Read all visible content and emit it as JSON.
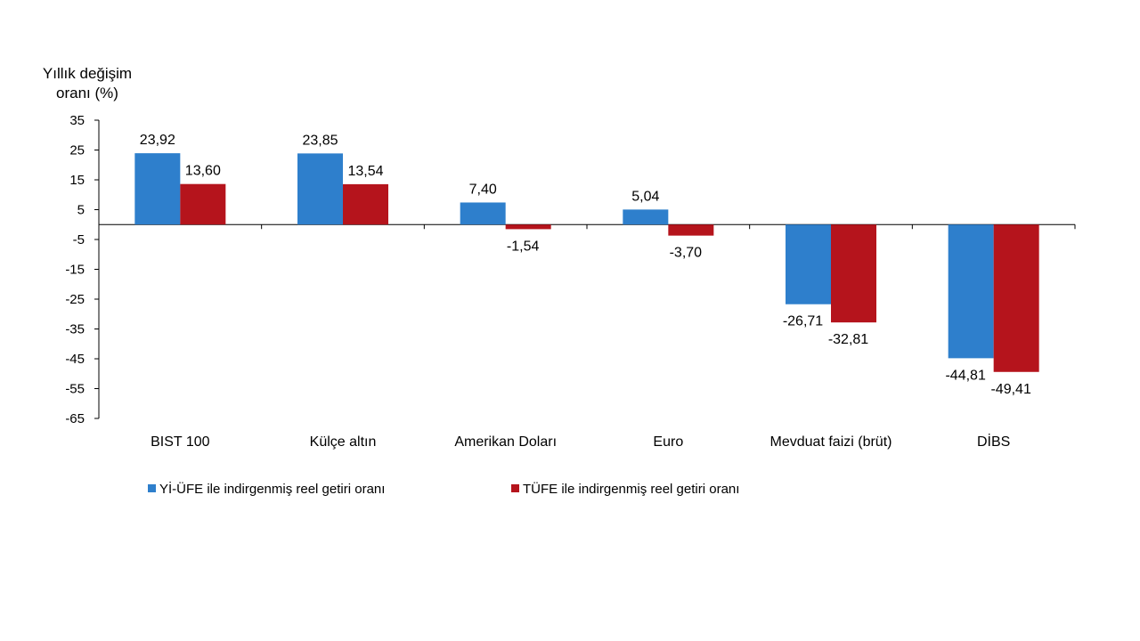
{
  "chart_data": {
    "type": "bar",
    "ylabel": [
      "Yıllık değişim",
      "oranı (%)"
    ],
    "ylim": [
      -65,
      35
    ],
    "yticks": [
      35,
      25,
      15,
      5,
      -5,
      -15,
      -25,
      -35,
      -45,
      -55,
      -65
    ],
    "grid": false,
    "legend_position": "bottom",
    "categories": [
      "BIST 100",
      "Külçe altın",
      "Amerikan Doları",
      "Euro",
      "Mevduat faizi (brüt)",
      "DİBS"
    ],
    "series": [
      {
        "name": "Yİ-ÜFE ile indirgenmiş reel getiri oranı",
        "color": "#2e7fcc",
        "values": [
          23.92,
          23.85,
          7.4,
          5.04,
          -26.71,
          -44.81
        ],
        "labels": [
          "23,92",
          "23,85",
          "7,40",
          "5,04",
          "-26,71",
          "-44,81"
        ]
      },
      {
        "name": "TÜFE ile indirgenmiş reel getiri oranı",
        "color": "#b5141c",
        "values": [
          13.6,
          13.54,
          -1.54,
          -3.7,
          -32.81,
          -49.41
        ],
        "labels": [
          "13,60",
          "13,54",
          "-1,54",
          "-3,70",
          "-32,81",
          "-49,41"
        ]
      }
    ]
  }
}
